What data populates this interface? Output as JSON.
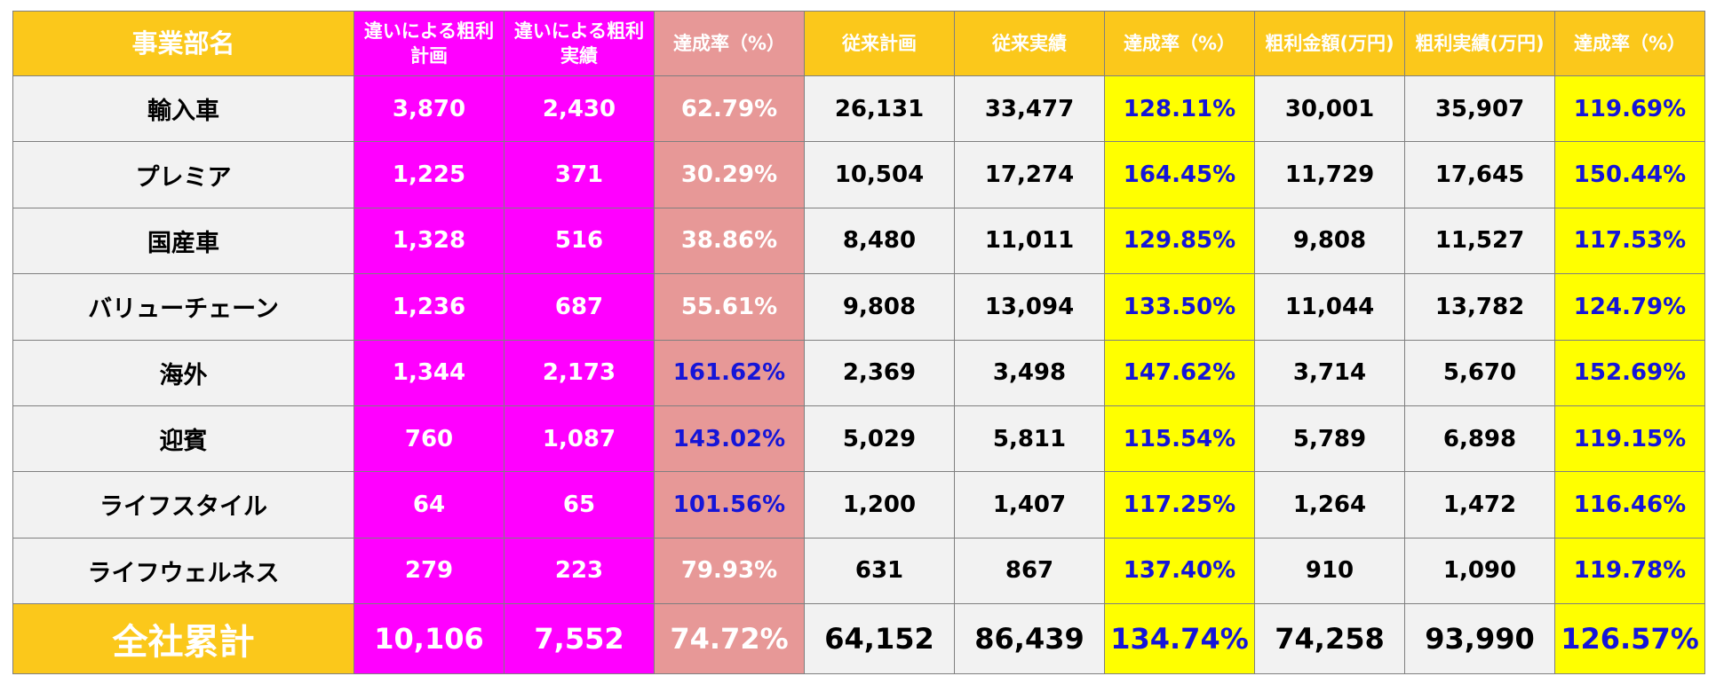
{
  "header": {
    "name": "事業部名",
    "gp_plan_line1": "違いによる粗利",
    "gp_plan_line2": "計画",
    "gp_actual_line1": "違いによる粗利",
    "gp_actual_line2": "実績",
    "rate1": "達成率（%）",
    "legacy_plan": "従来計画",
    "legacy_actual": "従来実績",
    "rate2": "達成率（%）",
    "gp_amount": "粗利金額(万円)",
    "gp_result": "粗利実績(万円)",
    "rate3": "達成率（%）"
  },
  "rows": [
    {
      "name": "輸入車",
      "gp_plan": "3,870",
      "gp_actual": "2,430",
      "rate1": "62.79%",
      "legacy_plan": "26,131",
      "legacy_actual": "33,477",
      "rate2": "128.11%",
      "gp_amount": "30,001",
      "gp_result": "35,907",
      "rate3": "119.69%"
    },
    {
      "name": "プレミア",
      "gp_plan": "1,225",
      "gp_actual": "371",
      "rate1": "30.29%",
      "legacy_plan": "10,504",
      "legacy_actual": "17,274",
      "rate2": "164.45%",
      "gp_amount": "11,729",
      "gp_result": "17,645",
      "rate3": "150.44%"
    },
    {
      "name": "国産車",
      "gp_plan": "1,328",
      "gp_actual": "516",
      "rate1": "38.86%",
      "legacy_plan": "8,480",
      "legacy_actual": "11,011",
      "rate2": "129.85%",
      "gp_amount": "9,808",
      "gp_result": "11,527",
      "rate3": "117.53%"
    },
    {
      "name": "バリューチェーン",
      "gp_plan": "1,236",
      "gp_actual": "687",
      "rate1": "55.61%",
      "legacy_plan": "9,808",
      "legacy_actual": "13,094",
      "rate2": "133.50%",
      "gp_amount": "11,044",
      "gp_result": "13,782",
      "rate3": "124.79%"
    },
    {
      "name": "海外",
      "gp_plan": "1,344",
      "gp_actual": "2,173",
      "rate1": "161.62%",
      "legacy_plan": "2,369",
      "legacy_actual": "3,498",
      "rate2": "147.62%",
      "gp_amount": "3,714",
      "gp_result": "5,670",
      "rate3": "152.69%"
    },
    {
      "name": "迎賓",
      "gp_plan": "760",
      "gp_actual": "1,087",
      "rate1": "143.02%",
      "legacy_plan": "5,029",
      "legacy_actual": "5,811",
      "rate2": "115.54%",
      "gp_amount": "5,789",
      "gp_result": "6,898",
      "rate3": "119.15%"
    },
    {
      "name": "ライフスタイル",
      "gp_plan": "64",
      "gp_actual": "65",
      "rate1": "101.56%",
      "legacy_plan": "1,200",
      "legacy_actual": "1,407",
      "rate2": "117.25%",
      "gp_amount": "1,264",
      "gp_result": "1,472",
      "rate3": "116.46%"
    },
    {
      "name": "ライフウェルネス",
      "gp_plan": "279",
      "gp_actual": "223",
      "rate1": "79.93%",
      "legacy_plan": "631",
      "legacy_actual": "867",
      "rate2": "137.40%",
      "gp_amount": "910",
      "gp_result": "1,090",
      "rate3": "119.78%"
    }
  ],
  "total": {
    "name": "全社累計",
    "gp_plan": "10,106",
    "gp_actual": "7,552",
    "rate1": "74.72%",
    "legacy_plan": "64,152",
    "legacy_actual": "86,439",
    "rate2": "134.74%",
    "gp_amount": "74,258",
    "gp_result": "93,990",
    "rate3": "126.57%"
  },
  "colors": {
    "header_gold": "#fbc81b",
    "magenta": "#ff00ff",
    "pink": "#e79897",
    "highlight_yellow": "#ffff00",
    "achievement_blue": "#1515d8",
    "row_gray": "#f2f2f2"
  }
}
